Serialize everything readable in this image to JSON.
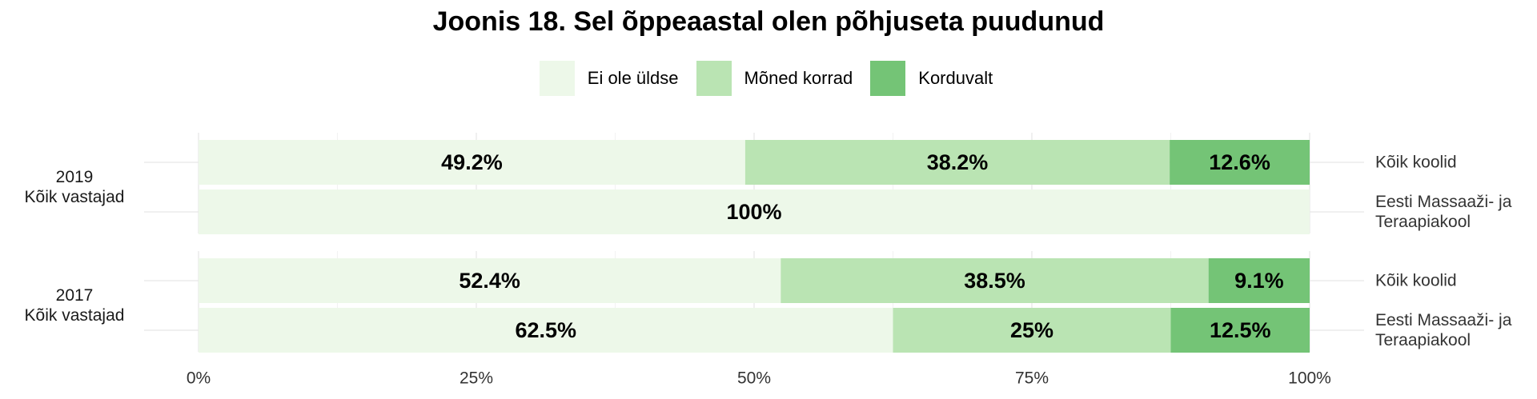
{
  "chart_data": {
    "type": "bar",
    "orientation": "horizontal-stacked-100",
    "title": "Joonis 18. Sel õppeaastal olen põhjuseta puudunud",
    "legend_position": "top",
    "series": [
      {
        "name": "Ei ole üldse",
        "color": "#edf8e9"
      },
      {
        "name": "Mõned korrad",
        "color": "#bae4b3"
      },
      {
        "name": "Korduvalt",
        "color": "#74c476"
      }
    ],
    "x_axis": {
      "ticks": [
        "0%",
        "25%",
        "50%",
        "75%",
        "100%"
      ],
      "xlim": [
        0,
        100
      ]
    },
    "facets": [
      {
        "label": [
          "2019",
          "Kõik vastajad"
        ],
        "rows": [
          {
            "label": [
              "Kõik koolid"
            ],
            "values": [
              49.2,
              38.2,
              12.6
            ],
            "labels": [
              "49.2%",
              "38.2%",
              "12.6%"
            ]
          },
          {
            "label": [
              "Eesti Massaaži- ja",
              "Teraapiakool"
            ],
            "values": [
              100,
              0,
              0
            ],
            "labels": [
              "100%",
              "",
              ""
            ]
          }
        ]
      },
      {
        "label": [
          "2017",
          "Kõik vastajad"
        ],
        "rows": [
          {
            "label": [
              "Kõik koolid"
            ],
            "values": [
              52.4,
              38.5,
              9.1
            ],
            "labels": [
              "52.4%",
              "38.5%",
              "9.1%"
            ]
          },
          {
            "label": [
              "Eesti Massaaži- ja",
              "Teraapiakool"
            ],
            "values": [
              62.5,
              25,
              12.5
            ],
            "labels": [
              "62.5%",
              "25%",
              "12.5%"
            ]
          }
        ]
      }
    ]
  }
}
